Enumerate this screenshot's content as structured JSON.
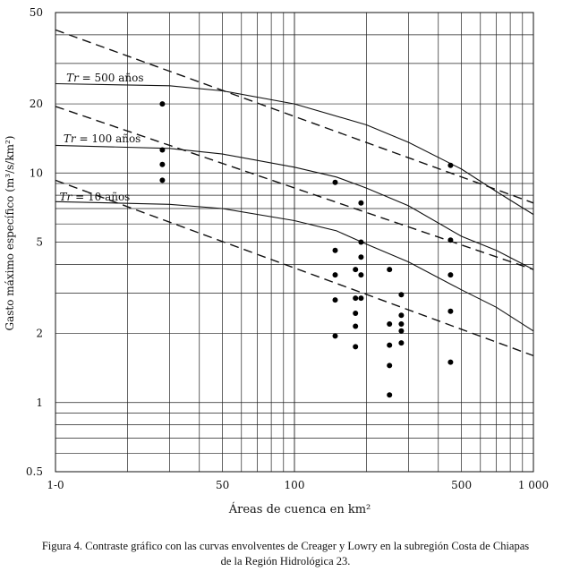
{
  "chart_data": {
    "type": "scatter",
    "x_scale": "log",
    "y_scale": "log",
    "xlim": [
      10,
      1000
    ],
    "ylim": [
      0.5,
      50
    ],
    "xlabel": "Áreas de cuenca en km²",
    "ylabel": "Gasto máximo específico (m³/s/km²)",
    "x_ticks": [
      {
        "value": 10,
        "label": "1-0"
      },
      {
        "value": 50,
        "label": "50"
      },
      {
        "value": 100,
        "label": "100"
      },
      {
        "value": 500,
        "label": "500"
      },
      {
        "value": 1000,
        "label": "1 000"
      }
    ],
    "y_ticks": [
      {
        "value": 0.5,
        "label": "0.5"
      },
      {
        "value": 1,
        "label": "1"
      },
      {
        "value": 2,
        "label": "2"
      },
      {
        "value": 5,
        "label": "5"
      },
      {
        "value": 10,
        "label": "10"
      },
      {
        "value": 20,
        "label": "20"
      },
      {
        "value": 50,
        "label": "50"
      }
    ],
    "annotations": [
      {
        "prefix": "Tr",
        "text": " = 500 años",
        "x": 11.1,
        "y": 25.0
      },
      {
        "prefix": "Tr",
        "text": " = 100 años",
        "x": 10.8,
        "y": 13.6
      },
      {
        "prefix": "Tr",
        "text": " = 10 años",
        "x": 10.4,
        "y": 7.6
      }
    ],
    "lowry_curves": [
      {
        "x": [
          10,
          30,
          50,
          100,
          200,
          300,
          500,
          700,
          1000
        ],
        "y": [
          24.5,
          24.0,
          22.8,
          20.0,
          16.2,
          13.6,
          10.4,
          8.3,
          6.6
        ]
      },
      {
        "x": [
          10,
          30,
          50,
          100,
          150,
          200,
          300,
          500,
          700,
          1000
        ],
        "y": [
          13.2,
          12.8,
          12.1,
          10.6,
          9.6,
          8.6,
          7.2,
          5.3,
          4.6,
          3.8
        ]
      },
      {
        "x": [
          10,
          30,
          50,
          100,
          150,
          200,
          300,
          500,
          700,
          1000
        ],
        "y": [
          7.5,
          7.3,
          7.0,
          6.2,
          5.6,
          4.9,
          4.1,
          3.1,
          2.6,
          2.05
        ]
      }
    ],
    "creager_curves": [
      {
        "x": [
          10,
          1000
        ],
        "y": [
          42.0,
          7.4
        ]
      },
      {
        "x": [
          10,
          1000
        ],
        "y": [
          19.5,
          3.8
        ]
      },
      {
        "x": [
          10,
          1000
        ],
        "y": [
          9.3,
          1.6
        ]
      }
    ],
    "points": [
      {
        "x": 28,
        "y": 20.0
      },
      {
        "x": 28,
        "y": 12.6
      },
      {
        "x": 28,
        "y": 10.9
      },
      {
        "x": 28,
        "y": 9.3
      },
      {
        "x": 148,
        "y": 9.1
      },
      {
        "x": 148,
        "y": 4.6
      },
      {
        "x": 148,
        "y": 3.6
      },
      {
        "x": 148,
        "y": 2.8
      },
      {
        "x": 148,
        "y": 1.95
      },
      {
        "x": 180,
        "y": 3.8
      },
      {
        "x": 180,
        "y": 2.85
      },
      {
        "x": 180,
        "y": 2.45
      },
      {
        "x": 180,
        "y": 2.15
      },
      {
        "x": 180,
        "y": 1.75
      },
      {
        "x": 190,
        "y": 7.4
      },
      {
        "x": 190,
        "y": 5.0
      },
      {
        "x": 190,
        "y": 4.3
      },
      {
        "x": 190,
        "y": 3.6
      },
      {
        "x": 190,
        "y": 2.85
      },
      {
        "x": 250,
        "y": 3.8
      },
      {
        "x": 250,
        "y": 2.2
      },
      {
        "x": 250,
        "y": 1.78
      },
      {
        "x": 250,
        "y": 1.45
      },
      {
        "x": 250,
        "y": 1.08
      },
      {
        "x": 280,
        "y": 2.95
      },
      {
        "x": 280,
        "y": 2.4
      },
      {
        "x": 280,
        "y": 2.2
      },
      {
        "x": 280,
        "y": 2.05
      },
      {
        "x": 280,
        "y": 1.82
      },
      {
        "x": 450,
        "y": 10.8
      },
      {
        "x": 450,
        "y": 5.1
      },
      {
        "x": 450,
        "y": 3.6
      },
      {
        "x": 450,
        "y": 2.5
      },
      {
        "x": 450,
        "y": 1.5
      }
    ]
  },
  "caption": {
    "line1": "Figura 4. Contraste gráfico con las curvas envolventes de Creager y Lowry en la subregión Costa de Chiapas",
    "line2": "de la Región Hidrológica 23."
  }
}
